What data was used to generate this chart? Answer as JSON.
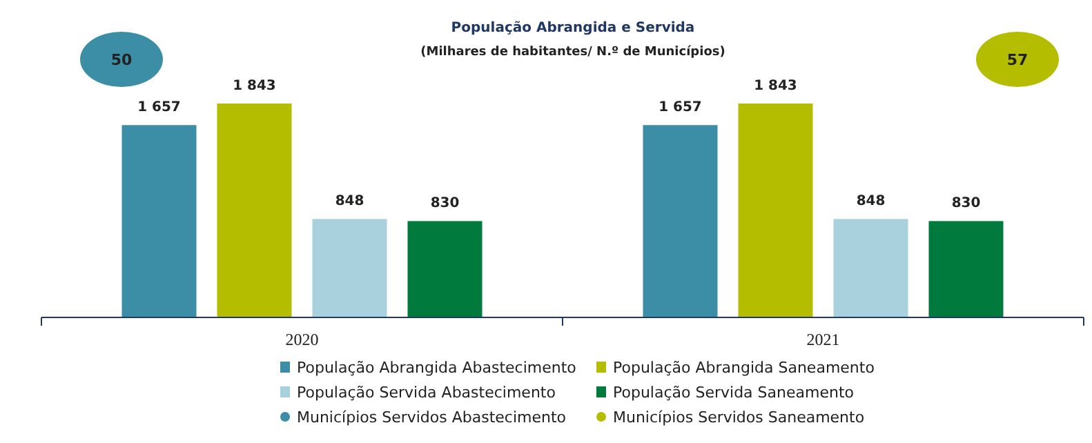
{
  "chart_data": {
    "type": "bar",
    "title": "População Abrangida e Servida",
    "subtitle": "(Milhares de habitantes/ N.º de Municípios)",
    "categories": [
      "2020",
      "2021"
    ],
    "legend": "bottom",
    "data_labels": true,
    "series": [
      {
        "name": "População Abrangida Abastecimento",
        "color": "#3b8ea5",
        "values": [
          1657,
          1657
        ],
        "value_labels": [
          "1 657",
          "1 657"
        ]
      },
      {
        "name": "População Abrangida Saneamento",
        "color": "#b5bd00",
        "values": [
          1843,
          1843
        ],
        "value_labels": [
          "1 843",
          "1 843"
        ]
      },
      {
        "name": "População Servida Abastecimento",
        "color": "#a8d0dd",
        "values": [
          848,
          848
        ],
        "value_labels": [
          "848",
          "848"
        ]
      },
      {
        "name": "População Servida Saneamento",
        "color": "#007a3d",
        "values": [
          830,
          830
        ],
        "value_labels": [
          "830",
          "830"
        ]
      },
      {
        "name": "Municípios Servidos Abastecimento",
        "type": "scatter",
        "marker": "circle",
        "color": "#3b8ea5",
        "values": [
          null,
          null
        ]
      },
      {
        "name": "Municípios Servidos Saneamento",
        "type": "scatter",
        "marker": "circle",
        "color": "#b5bd00",
        "values": [
          null,
          null
        ]
      }
    ],
    "annotations": [
      "50",
      "57"
    ]
  }
}
